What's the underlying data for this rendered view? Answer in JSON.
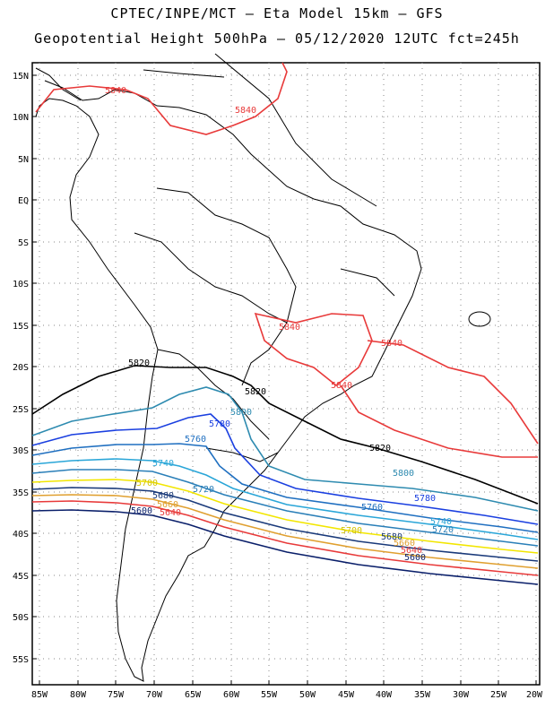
{
  "title_line1": "CPTEC/INPE/MCT –  Eta Model 15km – GFS",
  "title_line2": "Geopotential Height 500hPa – 05/12/2020 12UTC fct=245h",
  "lat_labels": [
    "15N",
    "10N",
    "5N",
    "EQ",
    "5S",
    "10S",
    "15S",
    "20S",
    "25S",
    "30S",
    "35S",
    "40S",
    "45S",
    "50S",
    "55S"
  ],
  "lon_labels": [
    "85W",
    "80W",
    "75W",
    "70W",
    "65W",
    "60W",
    "55W",
    "50W",
    "45W",
    "40W",
    "35W",
    "30W",
    "25W",
    "20W"
  ],
  "contours": [
    {
      "level": "5840",
      "color": "#e83a3a"
    },
    {
      "level": "5820",
      "color": "#000000"
    },
    {
      "level": "5800",
      "color": "#2e8bb0"
    },
    {
      "level": "5780",
      "color": "#1a3fe0"
    },
    {
      "level": "5760",
      "color": "#1f6fc0"
    },
    {
      "level": "5740",
      "color": "#2aa6d8"
    },
    {
      "level": "5720",
      "color": "#2a7fb8"
    },
    {
      "level": "5700",
      "color": "#f2e600"
    },
    {
      "level": "5680",
      "color": "#1a3a7a"
    },
    {
      "level": "5660",
      "color": "#e0a030"
    },
    {
      "level": "5640",
      "color": "#e83a3a"
    },
    {
      "level": "5600",
      "color": "#0a1f6a"
    }
  ]
}
